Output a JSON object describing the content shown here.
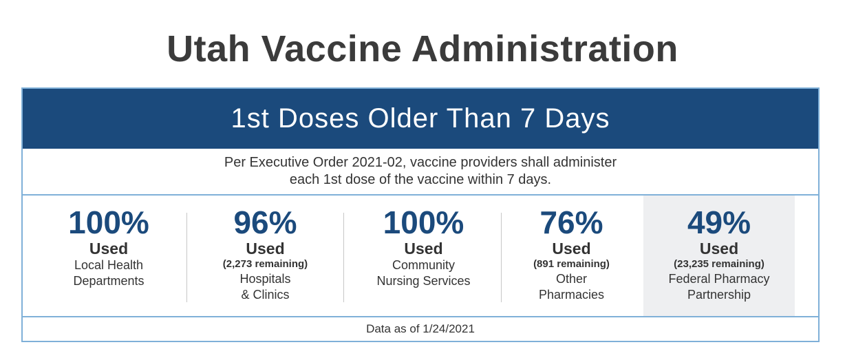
{
  "title": "Utah Vaccine Administration",
  "banner": "1st Doses Older Than 7 Days",
  "order_text": {
    "line1": "Per Executive Order 2021-02, vaccine providers shall administer",
    "line2": "each 1st dose of the vaccine within 7 days."
  },
  "stats": [
    {
      "percent": "100%",
      "used_label": "Used",
      "remaining": "",
      "desc1": "Local Health",
      "desc2": "Departments"
    },
    {
      "percent": "96%",
      "used_label": "Used",
      "remaining": "(2,273 remaining)",
      "desc1": "Hospitals",
      "desc2": "& Clinics"
    },
    {
      "percent": "100%",
      "used_label": "Used",
      "remaining": "",
      "desc1": "Community",
      "desc2": "Nursing Services"
    },
    {
      "percent": "76%",
      "used_label": "Used",
      "remaining": "(891 remaining)",
      "desc1": "Other",
      "desc2": "Pharmacies"
    },
    {
      "percent": "49%",
      "used_label": "Used",
      "remaining": "(23,235 remaining)",
      "desc1": "Federal Pharmacy",
      "desc2": "Partnership"
    }
  ],
  "data_as_of": "Data as of 1/24/2021",
  "colors": {
    "banner_bg": "#1b4a7c",
    "percent_text": "#1b4a7c",
    "border": "#7fb0d8",
    "highlight_bg": "#eeeff1"
  }
}
